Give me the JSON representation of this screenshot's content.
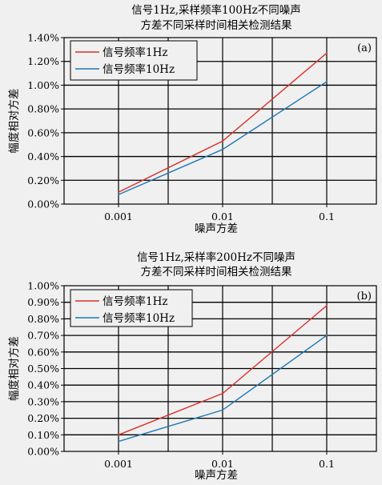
{
  "chart_data": [
    {
      "type": "line",
      "title_lines": [
        "信号1Hz,采样频率100Hz不同噪声",
        "方差不同采样时间相关检测结果"
      ],
      "panel_label": "(a)",
      "xlabel": "噪声方差",
      "ylabel": "幅度相对方差",
      "xscale": "log",
      "x": [
        0.001,
        0.01,
        0.1
      ],
      "xlim": [
        0.0003,
        0.3
      ],
      "xtick_labels": [
        "0.001",
        "0.01",
        "0.1"
      ],
      "ylim": [
        0,
        1.4
      ],
      "yticks": [
        0,
        0.2,
        0.4,
        0.6,
        0.8,
        1.0,
        1.2,
        1.4
      ],
      "ytick_labels": [
        "0.00%",
        "0.20%",
        "0.40%",
        "0.60%",
        "0.80%",
        "1.00%",
        "1.20%",
        "1.40%"
      ],
      "series": [
        {
          "name": "信号频率1Hz",
          "color": "#d9302a",
          "values": [
            0.1,
            0.53,
            1.27
          ]
        },
        {
          "name": "信号频率10Hz",
          "color": "#1f78b4",
          "values": [
            0.08,
            0.46,
            1.03
          ]
        }
      ]
    },
    {
      "type": "line",
      "title_lines": [
        "信号1Hz,采样率200Hz不同噪声",
        "方差不同采样时间相关检测结果"
      ],
      "panel_label": "(b)",
      "xlabel": "噪声方差",
      "ylabel": "幅度相对方差",
      "xscale": "log",
      "x": [
        0.001,
        0.01,
        0.1
      ],
      "xlim": [
        0.0003,
        0.3
      ],
      "xtick_labels": [
        "0.001",
        "0.01",
        "0.1"
      ],
      "ylim": [
        0,
        1.0
      ],
      "yticks": [
        0,
        0.1,
        0.2,
        0.3,
        0.4,
        0.5,
        0.6,
        0.7,
        0.8,
        0.9,
        1.0
      ],
      "ytick_labels": [
        "0.00%",
        "0.10%",
        "0.20%",
        "0.30%",
        "0.40%",
        "0.50%",
        "0.60%",
        "0.70%",
        "0.80%",
        "0.90%",
        "1.00%"
      ],
      "series": [
        {
          "name": "信号频率1Hz",
          "color": "#d9302a",
          "values": [
            0.1,
            0.35,
            0.88
          ]
        },
        {
          "name": "信号频率10Hz",
          "color": "#1f78b4",
          "values": [
            0.06,
            0.25,
            0.7
          ]
        }
      ]
    }
  ]
}
